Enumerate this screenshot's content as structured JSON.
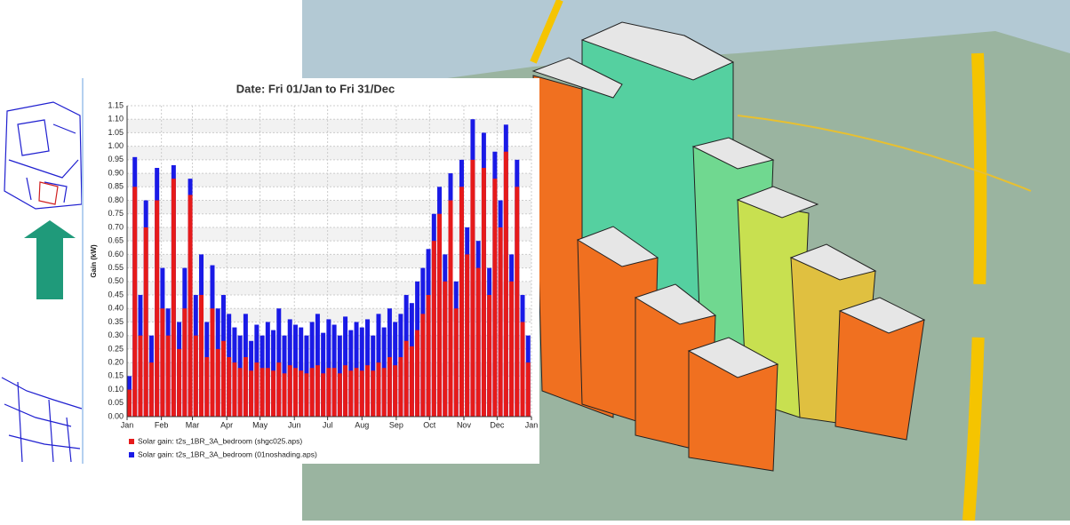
{
  "chart_data": {
    "type": "bar",
    "title": "Date: Fri 01/Jan to Fri 31/Dec",
    "y_label": "Gain (kW)",
    "xlim": [
      0,
      365
    ],
    "xticks": [
      {
        "value": 0,
        "label": "Jan"
      },
      {
        "value": 31,
        "label": "Feb"
      },
      {
        "value": 59,
        "label": "Mar"
      },
      {
        "value": 90,
        "label": "Apr"
      },
      {
        "value": 120,
        "label": "May"
      },
      {
        "value": 151,
        "label": "Jun"
      },
      {
        "value": 181,
        "label": "Jul"
      },
      {
        "value": 212,
        "label": "Aug"
      },
      {
        "value": 243,
        "label": "Sep"
      },
      {
        "value": 273,
        "label": "Oct"
      },
      {
        "value": 304,
        "label": "Nov"
      },
      {
        "value": 334,
        "label": "Dec"
      },
      {
        "value": 365,
        "label": "Jan"
      }
    ],
    "ylim": [
      0,
      1.15
    ],
    "yticks": [
      {
        "value": 0,
        "label": "0.00"
      },
      {
        "value": 0.05,
        "label": "0.05"
      },
      {
        "value": 0.1,
        "label": "0.10"
      },
      {
        "value": 0.15,
        "label": "0.15"
      },
      {
        "value": 0.2,
        "label": "0.20"
      },
      {
        "value": 0.25,
        "label": "0.25"
      },
      {
        "value": 0.3,
        "label": "0.30"
      },
      {
        "value": 0.35,
        "label": "0.35"
      },
      {
        "value": 0.4,
        "label": "0.40"
      },
      {
        "value": 0.45,
        "label": "0.45"
      },
      {
        "value": 0.5,
        "label": "0.50"
      },
      {
        "value": 0.55,
        "label": "0.55"
      },
      {
        "value": 0.6,
        "label": "0.60"
      },
      {
        "value": 0.65,
        "label": "0.65"
      },
      {
        "value": 0.7,
        "label": "0.70"
      },
      {
        "value": 0.75,
        "label": "0.75"
      },
      {
        "value": 0.8,
        "label": "0.80"
      },
      {
        "value": 0.85,
        "label": "0.85"
      },
      {
        "value": 0.9,
        "label": "0.90"
      },
      {
        "value": 0.95,
        "label": "0.95"
      },
      {
        "value": 1.0,
        "label": "1.00"
      },
      {
        "value": 1.05,
        "label": "1.05"
      },
      {
        "value": 1.1,
        "label": "1.10"
      },
      {
        "value": 1.15,
        "label": "1.15"
      }
    ],
    "grid": true,
    "x": [
      0,
      5,
      10,
      15,
      20,
      25,
      30,
      35,
      40,
      45,
      50,
      55,
      60,
      65,
      70,
      75,
      80,
      85,
      90,
      95,
      100,
      105,
      110,
      115,
      120,
      125,
      130,
      135,
      140,
      145,
      150,
      155,
      160,
      165,
      170,
      175,
      180,
      185,
      190,
      195,
      200,
      205,
      210,
      215,
      220,
      225,
      230,
      235,
      240,
      245,
      250,
      255,
      260,
      265,
      270,
      275,
      280,
      285,
      290,
      295,
      300,
      305,
      310,
      315,
      320,
      325,
      330,
      335,
      340,
      345,
      350,
      355,
      360
    ],
    "series": [
      {
        "name": "Solar gain: t2s_1BR_3A_bedroom (01noshading.aps)",
        "color": "#1a1ae6",
        "values": [
          0.15,
          0.96,
          0.45,
          0.8,
          0.3,
          0.92,
          0.55,
          0.4,
          0.93,
          0.35,
          0.55,
          0.88,
          0.45,
          0.6,
          0.35,
          0.56,
          0.4,
          0.45,
          0.38,
          0.33,
          0.3,
          0.38,
          0.28,
          0.34,
          0.3,
          0.35,
          0.32,
          0.4,
          0.3,
          0.36,
          0.34,
          0.33,
          0.3,
          0.35,
          0.38,
          0.31,
          0.36,
          0.34,
          0.3,
          0.37,
          0.32,
          0.35,
          0.33,
          0.36,
          0.3,
          0.38,
          0.33,
          0.4,
          0.35,
          0.38,
          0.45,
          0.42,
          0.5,
          0.55,
          0.62,
          0.75,
          0.85,
          0.6,
          0.9,
          0.5,
          0.95,
          0.7,
          1.1,
          0.65,
          1.05,
          0.55,
          0.98,
          0.8,
          1.08,
          0.6,
          0.95,
          0.45,
          0.3
        ]
      },
      {
        "name": "Solar gain: t2s_1BR_3A_bedroom (shgc025.aps)",
        "color": "#e61a1a",
        "values": [
          0.1,
          0.85,
          0.3,
          0.7,
          0.2,
          0.8,
          0.4,
          0.3,
          0.88,
          0.25,
          0.4,
          0.82,
          0.3,
          0.45,
          0.22,
          0.4,
          0.25,
          0.28,
          0.22,
          0.2,
          0.18,
          0.22,
          0.17,
          0.2,
          0.18,
          0.18,
          0.17,
          0.2,
          0.16,
          0.19,
          0.18,
          0.17,
          0.16,
          0.18,
          0.19,
          0.16,
          0.18,
          0.18,
          0.16,
          0.19,
          0.17,
          0.18,
          0.17,
          0.19,
          0.17,
          0.2,
          0.18,
          0.22,
          0.19,
          0.22,
          0.28,
          0.26,
          0.32,
          0.38,
          0.45,
          0.65,
          0.75,
          0.5,
          0.8,
          0.4,
          0.85,
          0.6,
          0.95,
          0.55,
          0.92,
          0.45,
          0.88,
          0.7,
          0.98,
          0.5,
          0.85,
          0.35,
          0.2
        ]
      }
    ]
  }
}
